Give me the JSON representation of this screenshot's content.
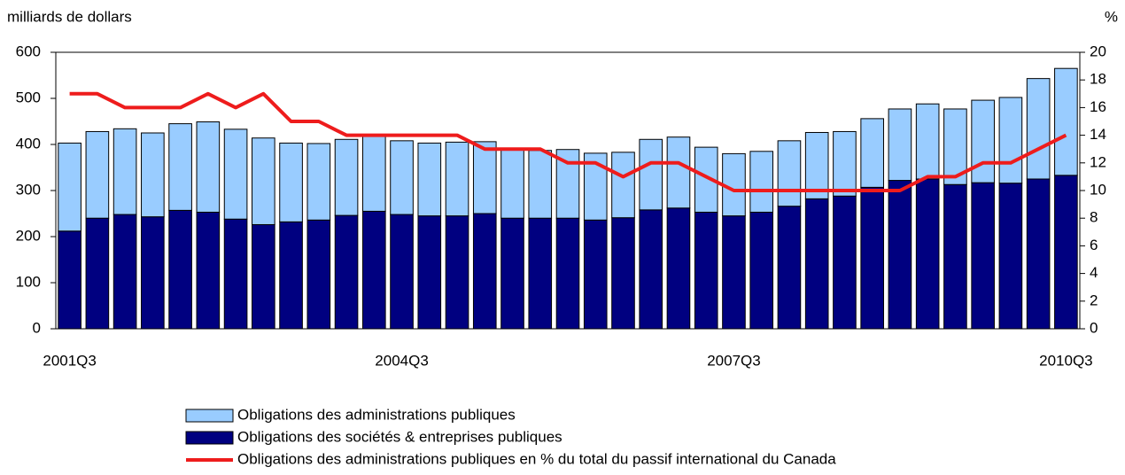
{
  "chart_data": {
    "type": "bar",
    "y_label": "milliards de dollars",
    "y2_label": "%",
    "categories": [
      "2001Q3",
      null,
      null,
      null,
      null,
      null,
      null,
      null,
      null,
      null,
      null,
      null,
      "2004Q3",
      null,
      null,
      null,
      null,
      null,
      null,
      null,
      null,
      null,
      null,
      null,
      "2007Q3",
      null,
      null,
      null,
      null,
      null,
      null,
      null,
      null,
      null,
      null,
      null,
      "2010Q3"
    ],
    "series": [
      {
        "name": "Obligations des administrations publiques",
        "color": "#99ccff",
        "values": [
          191,
          188,
          186,
          182,
          188,
          196,
          195,
          188,
          171,
          166,
          165,
          165,
          160,
          158,
          160,
          156,
          150,
          147,
          149,
          145,
          142,
          153,
          154,
          141,
          135,
          132,
          142,
          144,
          140,
          149,
          155,
          163,
          164,
          179,
          186,
          218,
          232
        ]
      },
      {
        "name": "Obligations des sociétés & entreprises publiques",
        "color": "#000080",
        "values": [
          212,
          240,
          248,
          243,
          257,
          253,
          238,
          226,
          232,
          236,
          246,
          255,
          248,
          245,
          245,
          250,
          240,
          240,
          240,
          236,
          241,
          258,
          262,
          253,
          245,
          253,
          266,
          282,
          288,
          307,
          322,
          325,
          313,
          317,
          316,
          325,
          333
        ]
      },
      {
        "name": "Obligations des administrations publiques en % du total du passif international du Canada",
        "color": "#ee1c1c",
        "axis": "y2",
        "values": [
          17,
          17,
          16,
          16,
          16,
          17,
          16,
          17,
          15,
          15,
          14,
          14,
          14,
          14,
          14,
          13,
          13,
          13,
          12,
          12,
          11,
          12,
          12,
          11,
          10,
          10,
          10,
          10,
          10,
          10,
          10,
          11,
          11,
          12,
          12,
          13,
          14
        ]
      }
    ],
    "ylim": [
      0,
      600
    ],
    "yticks": [
      0,
      100,
      200,
      300,
      400,
      500,
      600
    ],
    "y2lim": [
      0,
      20
    ],
    "y2ticks": [
      0,
      2,
      4,
      6,
      8,
      10,
      12,
      14,
      16,
      18,
      20
    ],
    "grid": false
  }
}
